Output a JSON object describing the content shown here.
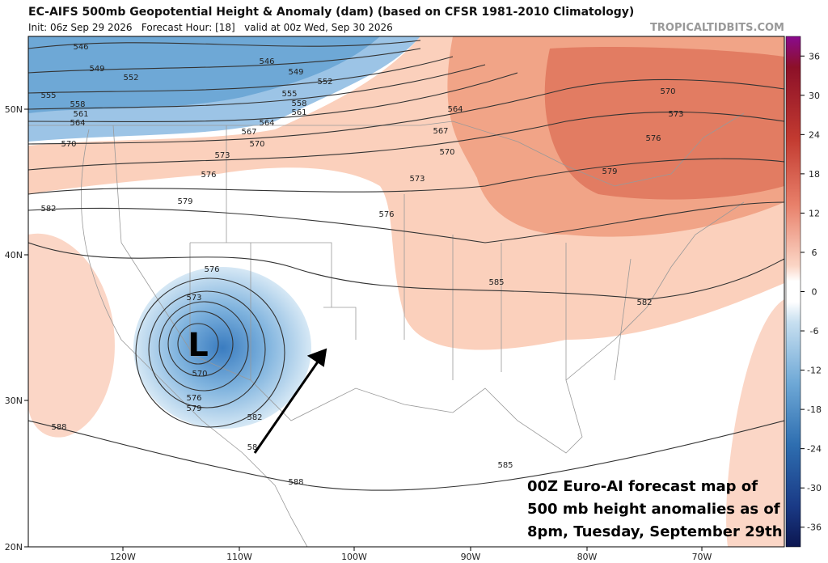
{
  "header": {
    "title": "EC-AIFS 500mb Geopotential Height & Anomaly (dam) (based on CFSR 1981-2010 Climatology)",
    "subtitle": "Init: 06z Sep 29 2026   Forecast Hour: [18]   valid at 00z Wed, Sep 30 2026",
    "watermark": "TROPICALTIDBITS.COM"
  },
  "map": {
    "longitude_labels": [
      "120W",
      "110W",
      "100W",
      "90W",
      "80W",
      "70W"
    ],
    "latitude_labels": [
      "50N",
      "40N",
      "30N",
      "20N"
    ],
    "contour_labels": [
      546,
      549,
      552,
      555,
      558,
      561,
      564,
      570,
      546,
      549,
      552,
      555,
      558,
      561,
      564,
      567,
      570,
      573,
      576,
      579,
      582,
      564,
      567,
      570,
      573,
      576,
      570,
      573,
      576,
      579,
      576,
      573,
      570,
      576,
      579,
      582,
      585,
      582,
      585,
      588,
      588,
      58
    ],
    "low_label": "L"
  },
  "colorbar": {
    "lim": [
      -39,
      39
    ],
    "ticks": [
      36,
      30,
      24,
      18,
      12,
      6,
      0,
      -6,
      -12,
      -18,
      -24,
      -30,
      -36
    ]
  },
  "annotation": {
    "lines": [
      "00Z Euro-AI forecast map of",
      "500 mb height anomalies as of",
      "8pm, Tuesday, September 29th"
    ]
  }
}
